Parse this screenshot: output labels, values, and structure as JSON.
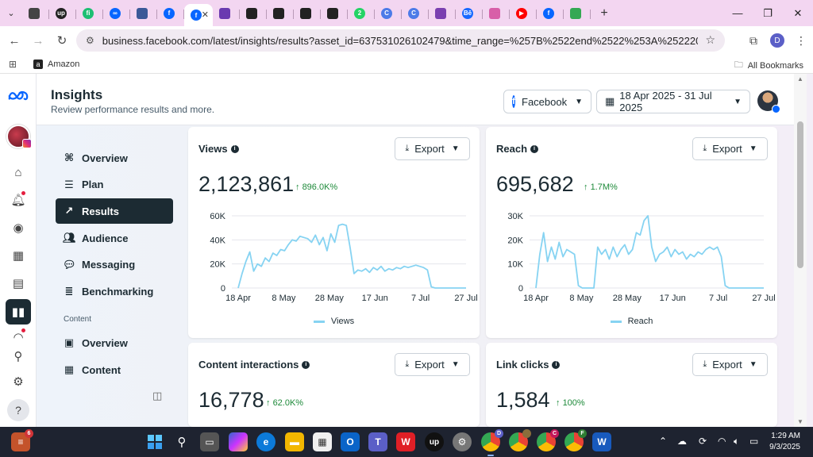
{
  "browser": {
    "tabs": [
      {
        "icon": "settings-tab-icon",
        "color": "#444"
      },
      {
        "icon": "upwork-tab-icon",
        "color": "#222",
        "glyph": "up"
      },
      {
        "icon": "fiverr-tab-icon",
        "color": "#1dbf73",
        "glyph": "fi"
      },
      {
        "icon": "meta-tab-icon",
        "color": "#0866ff",
        "glyph": "∞"
      },
      {
        "icon": "chart-tab-icon",
        "color": "#3b5998"
      },
      {
        "icon": "facebook-tab-icon",
        "color": "#0866ff",
        "glyph": "f"
      },
      {
        "icon": "facebook-tab-icon",
        "color": "#0866ff",
        "glyph": "f",
        "active": true
      },
      {
        "icon": "game-tab-icon",
        "color": "#6a3ab0"
      },
      {
        "icon": "clapper-tab-icon",
        "color": "#222"
      },
      {
        "icon": "clapper-tab-icon",
        "color": "#222"
      },
      {
        "icon": "clapper-tab-icon",
        "color": "#222"
      },
      {
        "icon": "clapper-tab-icon",
        "color": "#222"
      },
      {
        "icon": "whatsapp-tab-icon",
        "color": "#25d366",
        "glyph": "2"
      },
      {
        "icon": "c-tab-icon",
        "color": "#4c7be8",
        "glyph": "C"
      },
      {
        "icon": "c-tab-icon",
        "color": "#4c7be8",
        "glyph": "C"
      },
      {
        "icon": "chat-tab-icon",
        "color": "#7a3fb0"
      },
      {
        "icon": "behance-tab-icon",
        "color": "#1769ff",
        "glyph": "Bē"
      },
      {
        "icon": "copilot-tab-icon",
        "color": "#d85fa8"
      },
      {
        "icon": "youtube-tab-icon",
        "color": "#ff0000",
        "glyph": "▶"
      },
      {
        "icon": "facebook-tab-icon",
        "color": "#0866ff",
        "glyph": "f"
      },
      {
        "icon": "sheets-tab-icon",
        "color": "#34a853"
      }
    ],
    "url": "business.facebook.com/latest/insights/results?asset_id=637531026102479&time_range=%257B%2522end%2522%253A%25222025-07-31%2522%252...",
    "profile_initial": "D",
    "bookmark_amazon": "Amazon",
    "bookmarks_all": "All Bookmarks"
  },
  "header": {
    "title": "Insights",
    "subtitle": "Review performance results and more.",
    "platform": "Facebook",
    "date_range": "18 Apr 2025 - 31 Jul 2025"
  },
  "nav": {
    "items": [
      {
        "label": "Overview",
        "icon": "nodes-icon",
        "name": "overview"
      },
      {
        "label": "Plan",
        "icon": "list-icon",
        "name": "plan"
      },
      {
        "label": "Results",
        "icon": "trend-icon",
        "name": "results"
      },
      {
        "label": "Audience",
        "icon": "people-icon",
        "name": "audience"
      },
      {
        "label": "Messaging",
        "icon": "chat-icon",
        "name": "messaging"
      },
      {
        "label": "Benchmarking",
        "icon": "benchmark-icon",
        "name": "benchmarking"
      }
    ],
    "section_label": "Content",
    "content_items": [
      {
        "label": "Overview",
        "icon": "card-icon",
        "name": "content-overview"
      },
      {
        "label": "Content",
        "icon": "table-icon",
        "name": "content"
      }
    ]
  },
  "cards": {
    "views": {
      "title": "Views",
      "value": "2,123,861",
      "delta": "896.0K%",
      "export": "Export"
    },
    "reach": {
      "title": "Reach",
      "value": "695,682",
      "delta": "1.7M%",
      "export": "Export"
    },
    "interactions": {
      "title": "Content interactions",
      "value": "16,778",
      "delta": "62.0K%",
      "export": "Export"
    },
    "links": {
      "title": "Link clicks",
      "value": "1,584",
      "delta": "100%",
      "export": "Export"
    }
  },
  "chart_data": [
    {
      "type": "line",
      "series": [
        {
          "name": "Views",
          "color": "#86d3f2",
          "values": [
            0,
            12000,
            22000,
            30000,
            14000,
            20000,
            18000,
            25000,
            22000,
            29000,
            27000,
            32000,
            31000,
            36000,
            40000,
            39000,
            43000,
            42000,
            41000,
            38000,
            44000,
            36000,
            42000,
            31000,
            45000,
            38000,
            52000,
            53000,
            52000,
            33000,
            12000,
            15000,
            14000,
            16000,
            13000,
            17000,
            15000,
            18000,
            14000,
            16000,
            15000,
            17000,
            16000,
            18000,
            17000,
            18000,
            19000,
            18000,
            17000,
            15000,
            1000,
            0,
            0,
            0,
            0,
            0,
            0,
            0,
            0,
            0
          ]
        }
      ],
      "x_ticks": [
        "18 Apr",
        "8 May",
        "28 May",
        "17 Jun",
        "7 Jul",
        "27 Jul"
      ],
      "y_ticks": [
        "0",
        "20K",
        "40K",
        "60K"
      ],
      "ylim": [
        0,
        60000
      ]
    },
    {
      "type": "line",
      "series": [
        {
          "name": "Reach",
          "color": "#86d3f2",
          "values": [
            0,
            14000,
            23000,
            11000,
            17000,
            12000,
            19000,
            13000,
            16000,
            15000,
            14000,
            1000,
            0,
            0,
            0,
            0,
            17000,
            14000,
            16000,
            12000,
            17000,
            13000,
            16000,
            18000,
            14000,
            16000,
            23000,
            22000,
            28000,
            30000,
            17000,
            11000,
            14000,
            15000,
            17000,
            13000,
            16000,
            14000,
            15000,
            12000,
            14000,
            13000,
            15000,
            14000,
            16000,
            17000,
            16000,
            17000,
            13000,
            1000,
            0,
            0,
            0,
            0,
            0,
            0,
            0,
            0,
            0,
            0
          ]
        }
      ],
      "x_ticks": [
        "18 Apr",
        "8 May",
        "28 May",
        "17 Jun",
        "7 Jul",
        "27 Jul"
      ],
      "y_ticks": [
        "0",
        "10K",
        "20K",
        "30K"
      ],
      "ylim": [
        0,
        30000
      ]
    }
  ],
  "taskbar": {
    "time": "1:29 AM",
    "date": "9/3/2025",
    "stack_badge": "6"
  }
}
